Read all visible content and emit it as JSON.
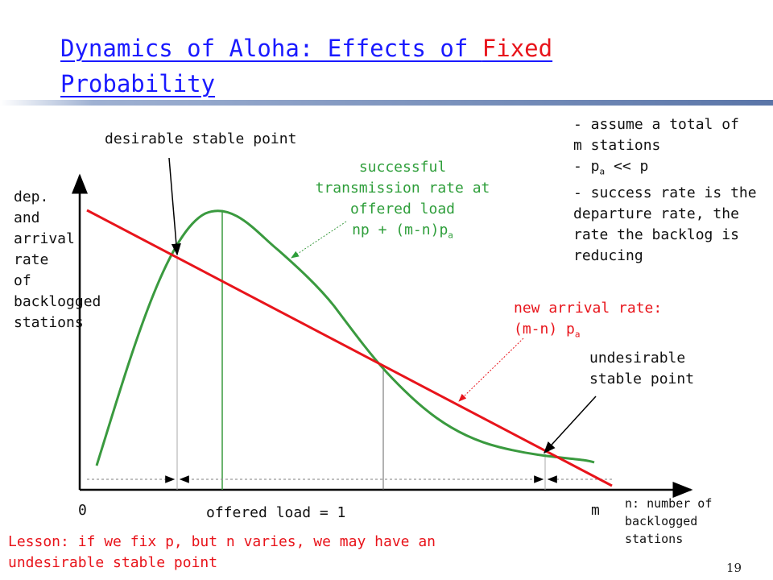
{
  "slide": {
    "title_part1": "Dynamics of Aloha: Effects of ",
    "title_highlight": "Fixed",
    "title_part2": "Probability",
    "page_number": "19"
  },
  "colors": {
    "title": "#1a1aff",
    "highlight": "#e8141b",
    "success_curve": "#3a9a3f",
    "arrival_line": "#e8141b",
    "bar": "#5a75a8"
  },
  "labels": {
    "desirable_point": "desirable stable point",
    "y_axis": [
      "dep.",
      "and",
      "arrival",
      "rate",
      "of",
      "backlogged",
      "stations"
    ],
    "success_rate": [
      "successful",
      "transmission rate at",
      "offered load",
      "np + (m-n)p",
      "a"
    ],
    "assumptions": [
      "- assume a total of",
      "m stations",
      "- p",
      "a",
      " << p",
      "- success rate is the",
      "departure rate, the",
      "rate the backlog is",
      "reducing"
    ],
    "new_arrival": [
      "new arrival rate:",
      "(m-n) p",
      "a"
    ],
    "undesirable_point": [
      "undesirable",
      "stable point"
    ],
    "origin": "0",
    "offered_load": "offered load = 1",
    "m_label": "m",
    "x_axis": [
      "n: number of",
      "backlogged",
      "stations"
    ],
    "lesson": [
      "Lesson: if we fix p, but n varies, we may have an",
      "undesirable stable point"
    ]
  }
}
